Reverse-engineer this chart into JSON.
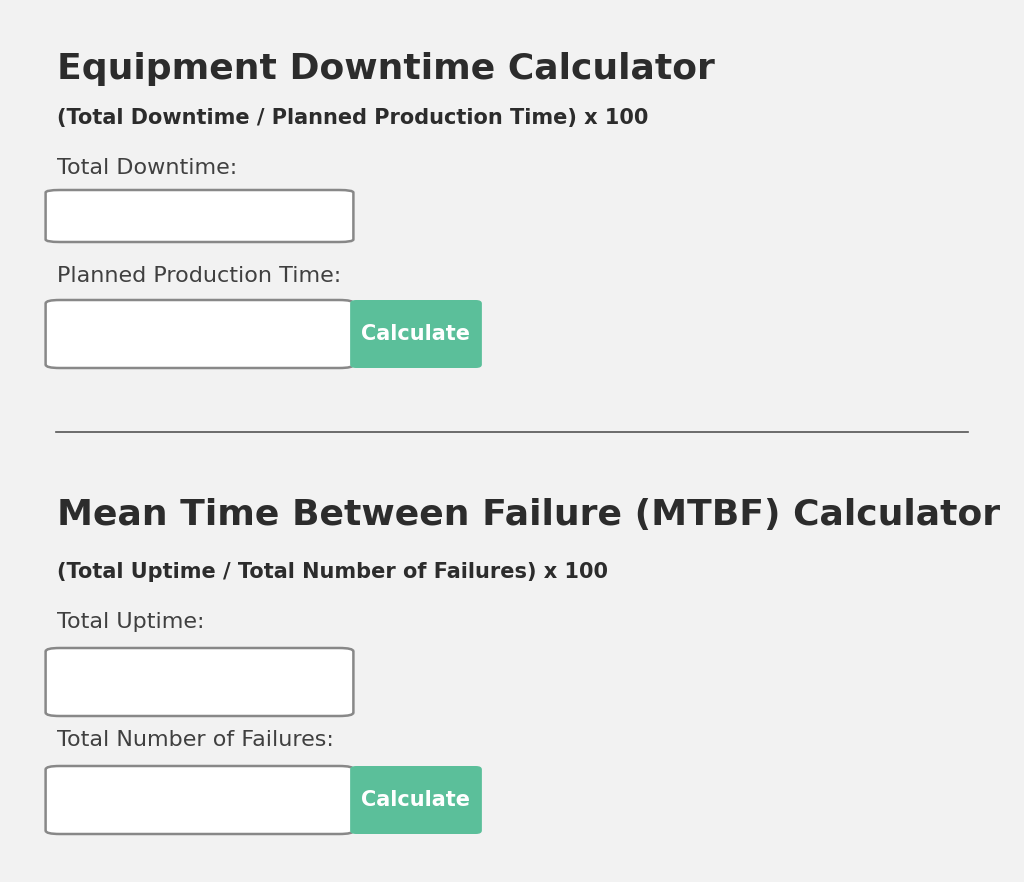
{
  "bg_color": "#f2f2f2",
  "title1": "Equipment Downtime Calculator",
  "formula1": "(Total Downtime / Planned Production Time) x 100",
  "label1a": "Total Downtime:",
  "label1b": "Planned Production Time:",
  "title2": "Mean Time Between Failure (MTBF) Calculator",
  "formula2": "(Total Uptime / Total Number of Failures) x 100",
  "label2a": "Total Uptime:",
  "label2b": "Total Number of Failures:",
  "btn_label": "Calculate",
  "btn_color": "#5bbf9a",
  "btn_text_color": "#ffffff",
  "title_color": "#2c2c2c",
  "formula_color": "#2c2c2c",
  "label_color": "#404040",
  "input_bg": "#ffffff",
  "input_border": "#888888",
  "divider_color": "#555555",
  "title_fontsize": 26,
  "formula_fontsize": 15,
  "label_fontsize": 16,
  "btn_fontsize": 15
}
